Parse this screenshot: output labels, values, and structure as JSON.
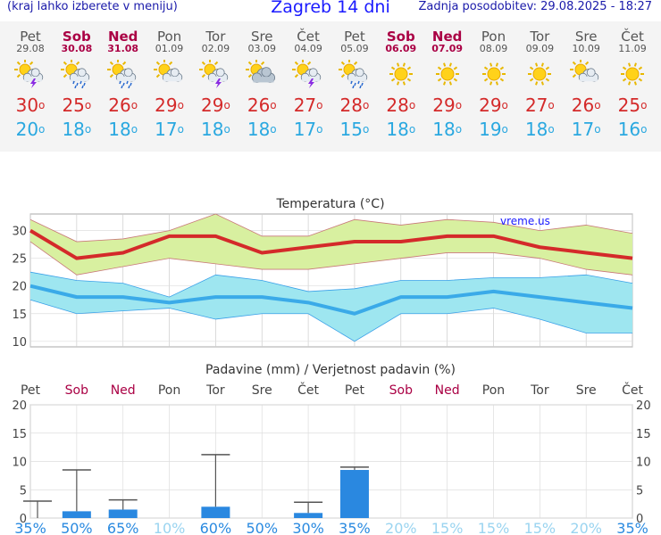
{
  "header": {
    "subtitle": "(kraj lahko izberete v meniju)",
    "title": "Zagreb 14 dni",
    "updated": "Zadnja posodobitev: 29.08.2025 - 18:27"
  },
  "days": [
    {
      "name": "Pet",
      "date": "29.08",
      "weekend": false,
      "icon": "sun-cloud-thunder-icon",
      "tmax": "30",
      "tmin": "20"
    },
    {
      "name": "Sob",
      "date": "30.08",
      "weekend": true,
      "icon": "sun-cloud-rain-icon",
      "tmax": "25",
      "tmin": "18"
    },
    {
      "name": "Ned",
      "date": "31.08",
      "weekend": true,
      "icon": "sun-cloud-rain-icon",
      "tmax": "26",
      "tmin": "18"
    },
    {
      "name": "Pon",
      "date": "01.09",
      "weekend": false,
      "icon": "sun-cloud-icon",
      "tmax": "29",
      "tmin": "17"
    },
    {
      "name": "Tor",
      "date": "02.09",
      "weekend": false,
      "icon": "sun-cloud-thunder-icon",
      "tmax": "29",
      "tmin": "18"
    },
    {
      "name": "Sre",
      "date": "03.09",
      "weekend": false,
      "icon": "sun-behind-cloud-icon",
      "tmax": "26",
      "tmin": "18"
    },
    {
      "name": "Čet",
      "date": "04.09",
      "weekend": false,
      "icon": "sun-cloud-thunder-icon",
      "tmax": "27",
      "tmin": "17"
    },
    {
      "name": "Pet",
      "date": "05.09",
      "weekend": false,
      "icon": "sun-cloud-rain-icon",
      "tmax": "28",
      "tmin": "15"
    },
    {
      "name": "Sob",
      "date": "06.09",
      "weekend": true,
      "icon": "sun-icon",
      "tmax": "28",
      "tmin": "18"
    },
    {
      "name": "Ned",
      "date": "07.09",
      "weekend": true,
      "icon": "sun-icon",
      "tmax": "29",
      "tmin": "18"
    },
    {
      "name": "Pon",
      "date": "08.09",
      "weekend": false,
      "icon": "sun-icon",
      "tmax": "29",
      "tmin": "19"
    },
    {
      "name": "Tor",
      "date": "09.09",
      "weekend": false,
      "icon": "sun-icon",
      "tmax": "27",
      "tmin": "18"
    },
    {
      "name": "Sre",
      "date": "10.09",
      "weekend": false,
      "icon": "sun-cloud-icon",
      "tmax": "26",
      "tmin": "17"
    },
    {
      "name": "Čet",
      "date": "11.09",
      "weekend": false,
      "icon": "sun-icon",
      "tmax": "25",
      "tmin": "16"
    }
  ],
  "colors": {
    "weekend": "#aa0044",
    "max": "#d42a2a",
    "min": "#2aa8e0",
    "rain": "#2a88e0",
    "maxBand": "#d8f0a0",
    "minBand": "#9ee6f0"
  },
  "chart_data": [
    {
      "type": "line",
      "title": "Temperatura (°C)",
      "watermark": "vreme.us",
      "ylim": [
        9,
        33
      ],
      "yticks": [
        10,
        15,
        20,
        25,
        30
      ],
      "series": [
        {
          "name": "max",
          "values": [
            30,
            25,
            26,
            29,
            29,
            26,
            27,
            28,
            28,
            29,
            29,
            27,
            26,
            25
          ],
          "band_low": [
            28,
            22,
            23.5,
            25,
            24,
            23,
            23,
            24,
            25,
            26,
            26,
            25,
            23,
            22
          ],
          "band_high": [
            32,
            28,
            28.5,
            30,
            33,
            29,
            29,
            32,
            31,
            32,
            31.5,
            30,
            31,
            29.5
          ]
        },
        {
          "name": "min",
          "values": [
            20,
            18,
            18,
            17,
            18,
            18,
            17,
            15,
            18,
            18,
            19,
            18,
            17,
            16
          ],
          "band_low": [
            17.5,
            15,
            15.5,
            16,
            14,
            15,
            15,
            10,
            15,
            15,
            16,
            14,
            11.5,
            11.5
          ],
          "band_high": [
            22.5,
            21,
            20.5,
            18,
            22,
            21,
            19,
            19.5,
            21,
            21,
            21.5,
            21.5,
            22,
            20.5
          ]
        }
      ]
    },
    {
      "type": "bar",
      "title": "Padavine (mm) / Verjetnost padavin (%)",
      "ylim": [
        0,
        20
      ],
      "yticks": [
        0,
        5,
        10,
        15,
        20
      ],
      "categories": [
        "Pet",
        "Sob",
        "Ned",
        "Pon",
        "Tor",
        "Sre",
        "Čet",
        "Pet",
        "Sob",
        "Ned",
        "Pon",
        "Tor",
        "Sre",
        "Čet"
      ],
      "weekend": [
        false,
        true,
        true,
        false,
        false,
        false,
        false,
        false,
        true,
        true,
        false,
        false,
        false,
        false
      ],
      "values": [
        0,
        1.2,
        1.5,
        0,
        2.0,
        0,
        0.9,
        8.5,
        0,
        0,
        0,
        0,
        0,
        0
      ],
      "error_high": [
        3,
        8.5,
        3.2,
        0,
        11.2,
        0,
        2.8,
        9.0,
        0,
        0,
        0,
        0,
        0,
        0
      ],
      "probability": [
        "35%",
        "50%",
        "65%",
        "10%",
        "60%",
        "50%",
        "30%",
        "35%",
        "20%",
        "15%",
        "15%",
        "15%",
        "20%",
        "35%"
      ],
      "prob_strong": [
        true,
        true,
        true,
        false,
        true,
        true,
        true,
        true,
        false,
        false,
        false,
        false,
        false,
        true
      ]
    }
  ]
}
